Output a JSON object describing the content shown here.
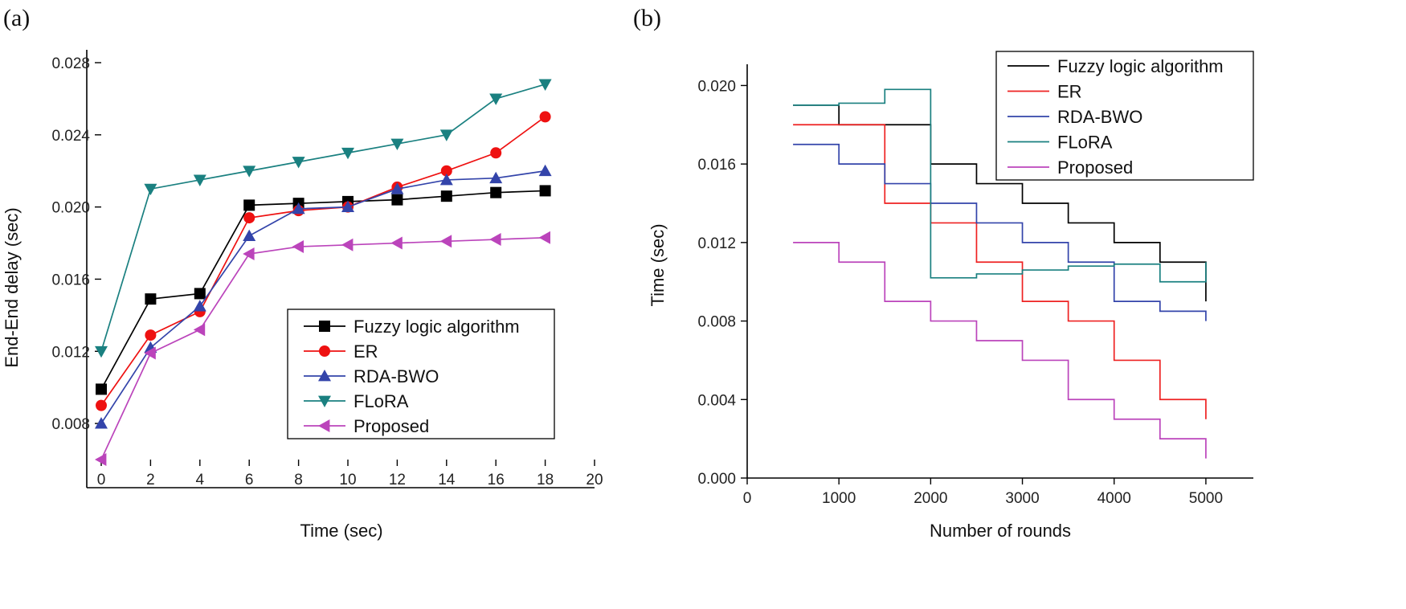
{
  "chart_data": [
    {
      "panel": "(a)",
      "type": "line",
      "xlabel": "Time (sec)",
      "ylabel": "End-End delay (sec)",
      "xlim": [
        0,
        20
      ],
      "ylim": [
        0.006,
        0.028
      ],
      "xticks": [
        0,
        2,
        4,
        6,
        8,
        10,
        12,
        14,
        16,
        18,
        20
      ],
      "xtick_labels": [
        "0",
        "2",
        "4",
        "6",
        "8",
        "10",
        "12",
        "14",
        "16",
        "18",
        "20"
      ],
      "yticks": [
        0.008,
        0.012,
        0.016,
        0.02,
        0.024,
        0.028
      ],
      "ytick_labels": [
        "0.008",
        "0.012",
        "0.016",
        "0.020",
        "0.024",
        "0.028"
      ],
      "legend_position": "bottom-right",
      "x": [
        0,
        2,
        4,
        6,
        8,
        10,
        12,
        14,
        16,
        18
      ],
      "series": [
        {
          "name": "Fuzzy logic algorithm",
          "color": "#000000",
          "marker": "square",
          "values": [
            0.0099,
            0.0149,
            0.0152,
            0.0201,
            0.0202,
            0.0203,
            0.0204,
            0.0206,
            0.0208,
            0.0209
          ]
        },
        {
          "name": "ER",
          "color": "#ee1111",
          "marker": "circle",
          "values": [
            0.009,
            0.0129,
            0.0142,
            0.0194,
            0.0198,
            0.02,
            0.0211,
            0.022,
            0.023,
            0.025
          ]
        },
        {
          "name": "RDA-BWO",
          "color": "#3344aa",
          "marker": "triangle-up",
          "values": [
            0.008,
            0.0122,
            0.0145,
            0.0184,
            0.0199,
            0.02,
            0.021,
            0.0215,
            0.0216,
            0.022
          ]
        },
        {
          "name": "FLoRA",
          "color": "#1a8080",
          "marker": "triangle-down",
          "values": [
            0.012,
            0.021,
            0.0215,
            0.022,
            0.0225,
            0.023,
            0.0235,
            0.024,
            0.026,
            0.0268
          ]
        },
        {
          "name": "Proposed",
          "color": "#bb44bb",
          "marker": "triangle-left",
          "values": [
            0.006,
            0.0119,
            0.0132,
            0.0174,
            0.0178,
            0.0179,
            0.018,
            0.0181,
            0.0182,
            0.0183
          ]
        }
      ]
    },
    {
      "panel": "(b)",
      "type": "line",
      "step": true,
      "xlabel": "Number of rounds",
      "ylabel": "Time (sec)",
      "xlim": [
        0,
        5500
      ],
      "ylim": [
        0.0,
        0.021
      ],
      "xticks": [
        0,
        1000,
        2000,
        3000,
        4000,
        5000
      ],
      "xtick_labels": [
        "0",
        "1000",
        "2000",
        "3000",
        "4000",
        "5000"
      ],
      "yticks": [
        0.0,
        0.004,
        0.008,
        0.012,
        0.016,
        0.02
      ],
      "ytick_labels": [
        "0.000",
        "0.004",
        "0.008",
        "0.012",
        "0.016",
        "0.020"
      ],
      "legend_position": "top-right",
      "x": [
        500,
        1000,
        1500,
        2000,
        2500,
        3000,
        3500,
        4000,
        4500,
        5000
      ],
      "series": [
        {
          "name": "Fuzzy logic algorithm",
          "color": "#000000",
          "values": [
            0.019,
            0.018,
            0.018,
            0.016,
            0.015,
            0.014,
            0.013,
            0.012,
            0.011,
            0.009
          ]
        },
        {
          "name": "ER",
          "color": "#ee2222",
          "values": [
            0.018,
            0.018,
            0.014,
            0.013,
            0.011,
            0.009,
            0.008,
            0.006,
            0.004,
            0.003
          ]
        },
        {
          "name": "RDA-BWO",
          "color": "#3344aa",
          "values": [
            0.017,
            0.016,
            0.015,
            0.014,
            0.013,
            0.012,
            0.011,
            0.009,
            0.0085,
            0.008
          ]
        },
        {
          "name": "FLoRA",
          "color": "#1a8080",
          "values": [
            0.019,
            0.0191,
            0.0198,
            0.0102,
            0.0104,
            0.0106,
            0.0108,
            0.0109,
            0.01,
            0.011
          ]
        },
        {
          "name": "Proposed",
          "color": "#bb44bb",
          "values": [
            0.012,
            0.011,
            0.009,
            0.008,
            0.007,
            0.006,
            0.004,
            0.003,
            0.002,
            0.001
          ]
        }
      ]
    }
  ]
}
